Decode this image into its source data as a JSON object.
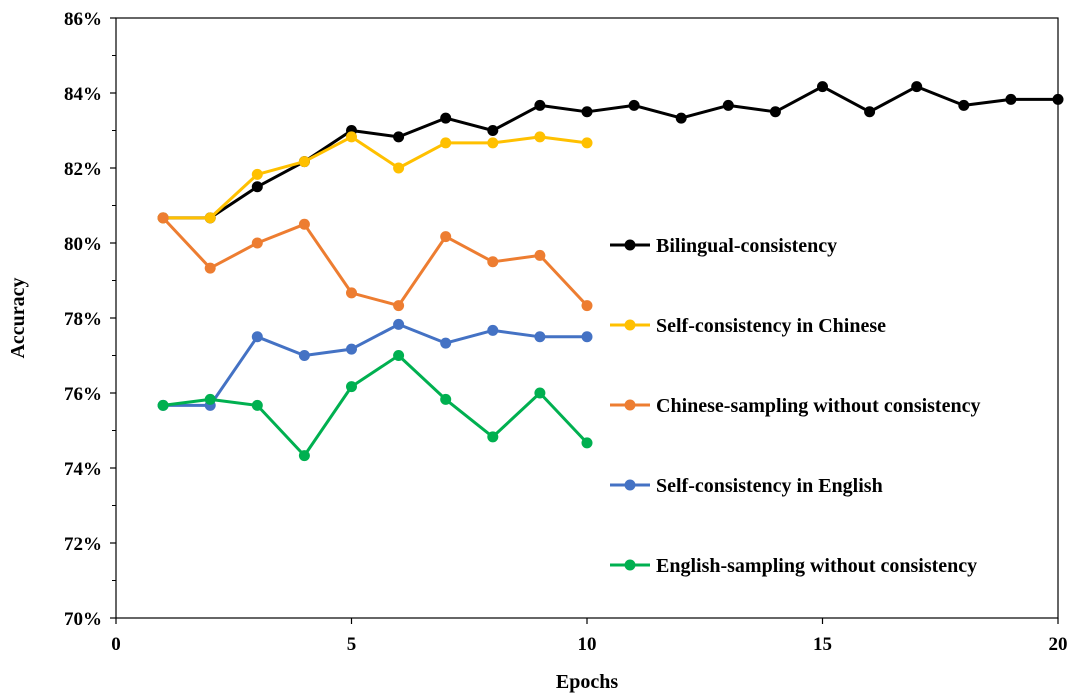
{
  "chart_data": {
    "type": "line",
    "title": "",
    "xlabel": "Epochs",
    "ylabel": "Accuracy",
    "xlim": [
      0,
      20
    ],
    "ylim": [
      70,
      86
    ],
    "x_ticks": [
      0,
      5,
      10,
      15,
      20
    ],
    "x_tick_labels": [
      "0",
      "5",
      "10",
      "15",
      "20"
    ],
    "y_ticks": [
      70,
      72,
      74,
      76,
      78,
      80,
      82,
      84,
      86
    ],
    "y_tick_labels": [
      "70%",
      "72%",
      "74%",
      "76%",
      "78%",
      "80%",
      "82%",
      "84%",
      "86%"
    ],
    "y_unit": "%",
    "grid": false,
    "legend_position": "right",
    "series": [
      {
        "name": "Bilingual-consistency",
        "color": "#000000",
        "x": [
          1,
          2,
          3,
          4,
          5,
          6,
          7,
          8,
          9,
          10,
          11,
          12,
          13,
          14,
          15,
          16,
          17,
          18,
          19,
          20
        ],
        "y": [
          80.67,
          80.67,
          81.5,
          82.17,
          83.0,
          82.83,
          83.33,
          83.0,
          83.67,
          83.5,
          83.67,
          83.33,
          83.67,
          83.5,
          84.17,
          83.5,
          84.17,
          83.67,
          83.83,
          83.83
        ]
      },
      {
        "name": "Self-consistency in Chinese",
        "color": "#FFC000",
        "x": [
          1,
          2,
          3,
          4,
          5,
          6,
          7,
          8,
          9,
          10
        ],
        "y": [
          80.67,
          80.67,
          81.83,
          82.17,
          82.83,
          82.0,
          82.67,
          82.67,
          82.83,
          82.67
        ]
      },
      {
        "name": "Chinese-sampling without consistency",
        "color": "#ED7D31",
        "x": [
          1,
          2,
          3,
          4,
          5,
          6,
          7,
          8,
          9,
          10
        ],
        "y": [
          80.67,
          79.33,
          80.0,
          80.5,
          78.67,
          78.33,
          80.17,
          79.5,
          79.67,
          78.33
        ]
      },
      {
        "name": "Self-consistency in English",
        "color": "#4472C4",
        "x": [
          1,
          2,
          3,
          4,
          5,
          6,
          7,
          8,
          9,
          10
        ],
        "y": [
          75.67,
          75.67,
          77.5,
          77.0,
          77.17,
          77.83,
          77.33,
          77.67,
          77.5,
          77.5
        ]
      },
      {
        "name": "English-sampling without consistency",
        "color": "#00B050",
        "x": [
          1,
          2,
          3,
          4,
          5,
          6,
          7,
          8,
          9,
          10
        ],
        "y": [
          75.67,
          75.83,
          75.67,
          74.33,
          76.17,
          77.0,
          75.83,
          74.83,
          76.0,
          74.67
        ]
      }
    ]
  }
}
